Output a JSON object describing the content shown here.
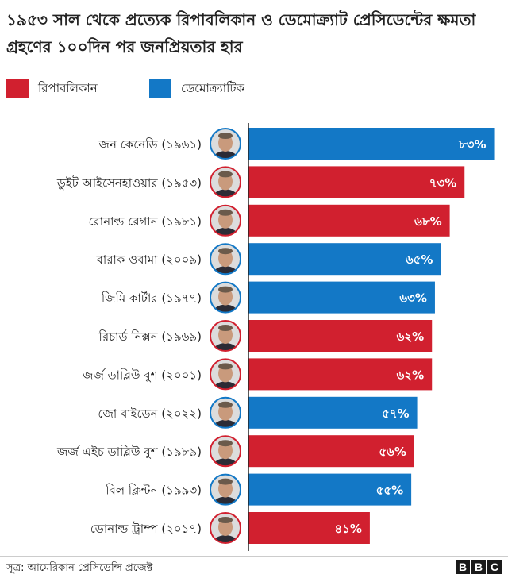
{
  "title": "১৯৫৩ সাল থেকে প্রত্যেক রিপাবলিকান ও ডেমোক্র্যাট প্রেসিডেন্টের ক্ষমতা গ্রহণের ১০০দিন পর জনপ্রিয়তার হার",
  "legend": [
    {
      "label": "রিপাবলিকান",
      "color": "#d1202f"
    },
    {
      "label": "ডেমোক্র্যাটিক",
      "color": "#1378c6"
    }
  ],
  "chart_data": {
    "type": "bar",
    "orientation": "horizontal",
    "title": "১৯৫৩ সাল থেকে প্রত্যেক রিপাবলিকান ও ডেমোক্র্যাট প্রেসিডেন্টের ক্ষমতা গ্রহণের ১০০দিন পর জনপ্রিয়তার হার",
    "categories": [
      "জন কেনেডি (১৯৬১)",
      "ডুইট আইসেনহাওয়ার (১৯৫৩)",
      "রোনাল্ড রেগান (১৯৮১)",
      "বারাক ওবামা (২০০৯)",
      "জিমি কার্টার (১৯৭৭)",
      "রিচার্ড নিক্সন (১৯৬৯)",
      "জর্জ ডাব্লিউ বুশ (২০০১)",
      "জো বাইডেন (২০২২)",
      "জর্জ এইচ ডাব্লিউ বুশ (১৯৮৯)",
      "বিল ক্লিন্টন (১৯৯৩)",
      "ডোনাল্ড ট্রাম্প (২০১৭)"
    ],
    "values": [
      83,
      73,
      68,
      65,
      63,
      62,
      62,
      57,
      56,
      55,
      41
    ],
    "value_labels": [
      "৮৩%",
      "৭৩%",
      "৬৮%",
      "৬৫%",
      "৬৩%",
      "৬২%",
      "৬২%",
      "৫৭%",
      "৫৬%",
      "৫৫%",
      "৪১%"
    ],
    "parties": [
      "democratic",
      "republican",
      "republican",
      "democratic",
      "democratic",
      "republican",
      "republican",
      "democratic",
      "republican",
      "democratic",
      "republican"
    ],
    "xlim": [
      0,
      85
    ],
    "colors": {
      "republican": "#d1202f",
      "democratic": "#1378c6"
    },
    "portrait_icon": "president-portrait-icon",
    "grid": false,
    "legend_position": "top-left"
  },
  "footer": {
    "source": "সূত্র: আমেরিকান প্রেসিডেন্সি প্রজেক্ট",
    "logo": [
      "B",
      "B",
      "C"
    ]
  }
}
